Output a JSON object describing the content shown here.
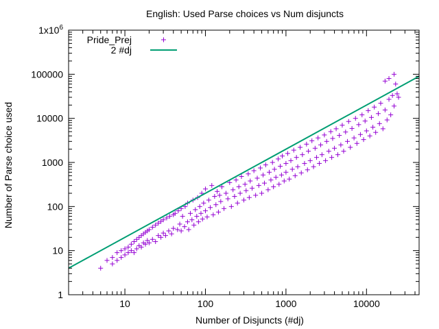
{
  "chart_data": {
    "type": "scatter",
    "title": "English: Used Parse choices vs Num disjuncts",
    "xlabel": "Number of Disjuncts (#dj)",
    "ylabel": "Number of Parse choice used",
    "x_scale": "log",
    "y_scale": "log",
    "xlim": [
      2,
      45000
    ],
    "ylim": [
      1,
      1000000
    ],
    "grid": false,
    "legend_position": "top-left",
    "x_ticks": [
      {
        "value": 10,
        "label": "10"
      },
      {
        "value": 100,
        "label": "100"
      },
      {
        "value": 1000,
        "label": "1000"
      },
      {
        "value": 10000,
        "label": "10000"
      }
    ],
    "y_ticks": [
      {
        "value": 1,
        "label": "1"
      },
      {
        "value": 10,
        "label": "10"
      },
      {
        "value": 100,
        "label": "100"
      },
      {
        "value": 1000,
        "label": "1000"
      },
      {
        "value": 10000,
        "label": "10000"
      },
      {
        "value": 100000,
        "label": "100000"
      },
      {
        "value": 1000000,
        "label": "1x10",
        "sup": "6"
      }
    ],
    "series": [
      {
        "name": "Pride_Prej",
        "kind": "points",
        "marker": "plus",
        "color": "#9400d3",
        "points": [
          [
            5,
            4
          ],
          [
            6,
            6
          ],
          [
            7,
            5
          ],
          [
            7,
            7
          ],
          [
            8,
            6
          ],
          [
            8,
            9
          ],
          [
            9,
            7
          ],
          [
            9,
            10
          ],
          [
            10,
            8
          ],
          [
            10,
            11
          ],
          [
            11,
            9
          ],
          [
            11,
            12
          ],
          [
            12,
            10
          ],
          [
            12,
            14
          ],
          [
            13,
            9
          ],
          [
            13,
            16
          ],
          [
            14,
            11
          ],
          [
            14,
            18
          ],
          [
            15,
            13
          ],
          [
            15,
            20
          ],
          [
            16,
            12
          ],
          [
            16,
            22
          ],
          [
            17,
            15
          ],
          [
            17,
            24
          ],
          [
            18,
            14
          ],
          [
            18,
            26
          ],
          [
            19,
            17
          ],
          [
            19,
            28
          ],
          [
            20,
            15
          ],
          [
            20,
            30
          ],
          [
            22,
            18
          ],
          [
            22,
            34
          ],
          [
            24,
            16
          ],
          [
            24,
            38
          ],
          [
            26,
            22
          ],
          [
            26,
            42
          ],
          [
            28,
            20
          ],
          [
            28,
            46
          ],
          [
            30,
            25
          ],
          [
            30,
            50
          ],
          [
            32,
            22
          ],
          [
            33,
            55
          ],
          [
            35,
            28
          ],
          [
            36,
            60
          ],
          [
            38,
            24
          ],
          [
            40,
            65
          ],
          [
            40,
            32
          ],
          [
            42,
            70
          ],
          [
            45,
            30
          ],
          [
            46,
            80
          ],
          [
            48,
            40
          ],
          [
            50,
            90
          ],
          [
            50,
            28
          ],
          [
            52,
            60
          ],
          [
            55,
            35
          ],
          [
            56,
            100
          ],
          [
            60,
            45
          ],
          [
            60,
            120
          ],
          [
            62,
            30
          ],
          [
            65,
            70
          ],
          [
            68,
            50
          ],
          [
            70,
            140
          ],
          [
            72,
            38
          ],
          [
            75,
            85
          ],
          [
            78,
            60
          ],
          [
            80,
            160
          ],
          [
            82,
            45
          ],
          [
            85,
            100
          ],
          [
            88,
            70
          ],
          [
            90,
            200
          ],
          [
            92,
            52
          ],
          [
            95,
            120
          ],
          [
            100,
            80
          ],
          [
            100,
            250
          ],
          [
            105,
            58
          ],
          [
            110,
            140
          ],
          [
            115,
            95
          ],
          [
            120,
            300
          ],
          [
            125,
            65
          ],
          [
            130,
            170
          ],
          [
            135,
            110
          ],
          [
            140,
            220
          ],
          [
            145,
            75
          ],
          [
            150,
            180
          ],
          [
            155,
            130
          ],
          [
            160,
            280
          ],
          [
            170,
            90
          ],
          [
            180,
            200
          ],
          [
            190,
            150
          ],
          [
            200,
            350
          ],
          [
            210,
            100
          ],
          [
            220,
            240
          ],
          [
            230,
            170
          ],
          [
            240,
            400
          ],
          [
            250,
            120
          ],
          [
            260,
            280
          ],
          [
            270,
            200
          ],
          [
            280,
            480
          ],
          [
            300,
            140
          ],
          [
            310,
            320
          ],
          [
            320,
            230
          ],
          [
            340,
            550
          ],
          [
            350,
            160
          ],
          [
            360,
            380
          ],
          [
            380,
            260
          ],
          [
            400,
            650
          ],
          [
            420,
            180
          ],
          [
            440,
            440
          ],
          [
            460,
            300
          ],
          [
            480,
            750
          ],
          [
            500,
            200
          ],
          [
            520,
            520
          ],
          [
            540,
            340
          ],
          [
            560,
            880
          ],
          [
            600,
            240
          ],
          [
            620,
            600
          ],
          [
            650,
            400
          ],
          [
            680,
            1000
          ],
          [
            700,
            280
          ],
          [
            720,
            700
          ],
          [
            750,
            460
          ],
          [
            800,
            1200
          ],
          [
            820,
            320
          ],
          [
            850,
            820
          ],
          [
            880,
            520
          ],
          [
            900,
            1400
          ],
          [
            950,
            380
          ],
          [
            1000,
            950
          ],
          [
            1000,
            600
          ],
          [
            1050,
            1600
          ],
          [
            1100,
            420
          ],
          [
            1150,
            1100
          ],
          [
            1200,
            700
          ],
          [
            1250,
            1900
          ],
          [
            1300,
            500
          ],
          [
            1350,
            1300
          ],
          [
            1400,
            800
          ],
          [
            1500,
            2200
          ],
          [
            1550,
            580
          ],
          [
            1600,
            1500
          ],
          [
            1700,
            950
          ],
          [
            1800,
            2600
          ],
          [
            1850,
            680
          ],
          [
            1900,
            1800
          ],
          [
            2000,
            1100
          ],
          [
            2100,
            3100
          ],
          [
            2200,
            800
          ],
          [
            2300,
            2100
          ],
          [
            2400,
            1300
          ],
          [
            2500,
            3600
          ],
          [
            2600,
            950
          ],
          [
            2700,
            2500
          ],
          [
            2800,
            1500
          ],
          [
            3000,
            4200
          ],
          [
            3100,
            1100
          ],
          [
            3200,
            3000
          ],
          [
            3400,
            1800
          ],
          [
            3600,
            5000
          ],
          [
            3700,
            1300
          ],
          [
            3800,
            3500
          ],
          [
            4000,
            2100
          ],
          [
            4200,
            5800
          ],
          [
            4400,
            1500
          ],
          [
            4600,
            4100
          ],
          [
            4800,
            2500
          ],
          [
            5000,
            7000
          ],
          [
            5200,
            1800
          ],
          [
            5500,
            4900
          ],
          [
            5800,
            3000
          ],
          [
            6000,
            8500
          ],
          [
            6300,
            2200
          ],
          [
            6600,
            5900
          ],
          [
            7000,
            3600
          ],
          [
            7300,
            10000
          ],
          [
            7600,
            2700
          ],
          [
            8000,
            7200
          ],
          [
            8400,
            4300
          ],
          [
            8800,
            12000
          ],
          [
            9200,
            3300
          ],
          [
            9600,
            8700
          ],
          [
            10000,
            5200
          ],
          [
            10500,
            15000
          ],
          [
            11000,
            4000
          ],
          [
            11500,
            10500
          ],
          [
            12000,
            6300
          ],
          [
            12500,
            18000
          ],
          [
            13000,
            4800
          ],
          [
            14000,
            12800
          ],
          [
            14500,
            7600
          ],
          [
            15000,
            22000
          ],
          [
            16000,
            5800
          ],
          [
            17000,
            15500
          ],
          [
            18000,
            9200
          ],
          [
            19000,
            27000
          ],
          [
            20000,
            12000
          ],
          [
            21000,
            33000
          ],
          [
            22000,
            19000
          ],
          [
            23000,
            60000
          ],
          [
            24000,
            36000
          ],
          [
            19000,
            80000
          ],
          [
            22000,
            100000
          ],
          [
            17000,
            70000
          ],
          [
            25000,
            30000
          ]
        ]
      },
      {
        "name": "2 #dj",
        "kind": "line",
        "color": "#009e73",
        "x": [
          2,
          45000
        ],
        "y": [
          4,
          90000
        ]
      }
    ]
  }
}
